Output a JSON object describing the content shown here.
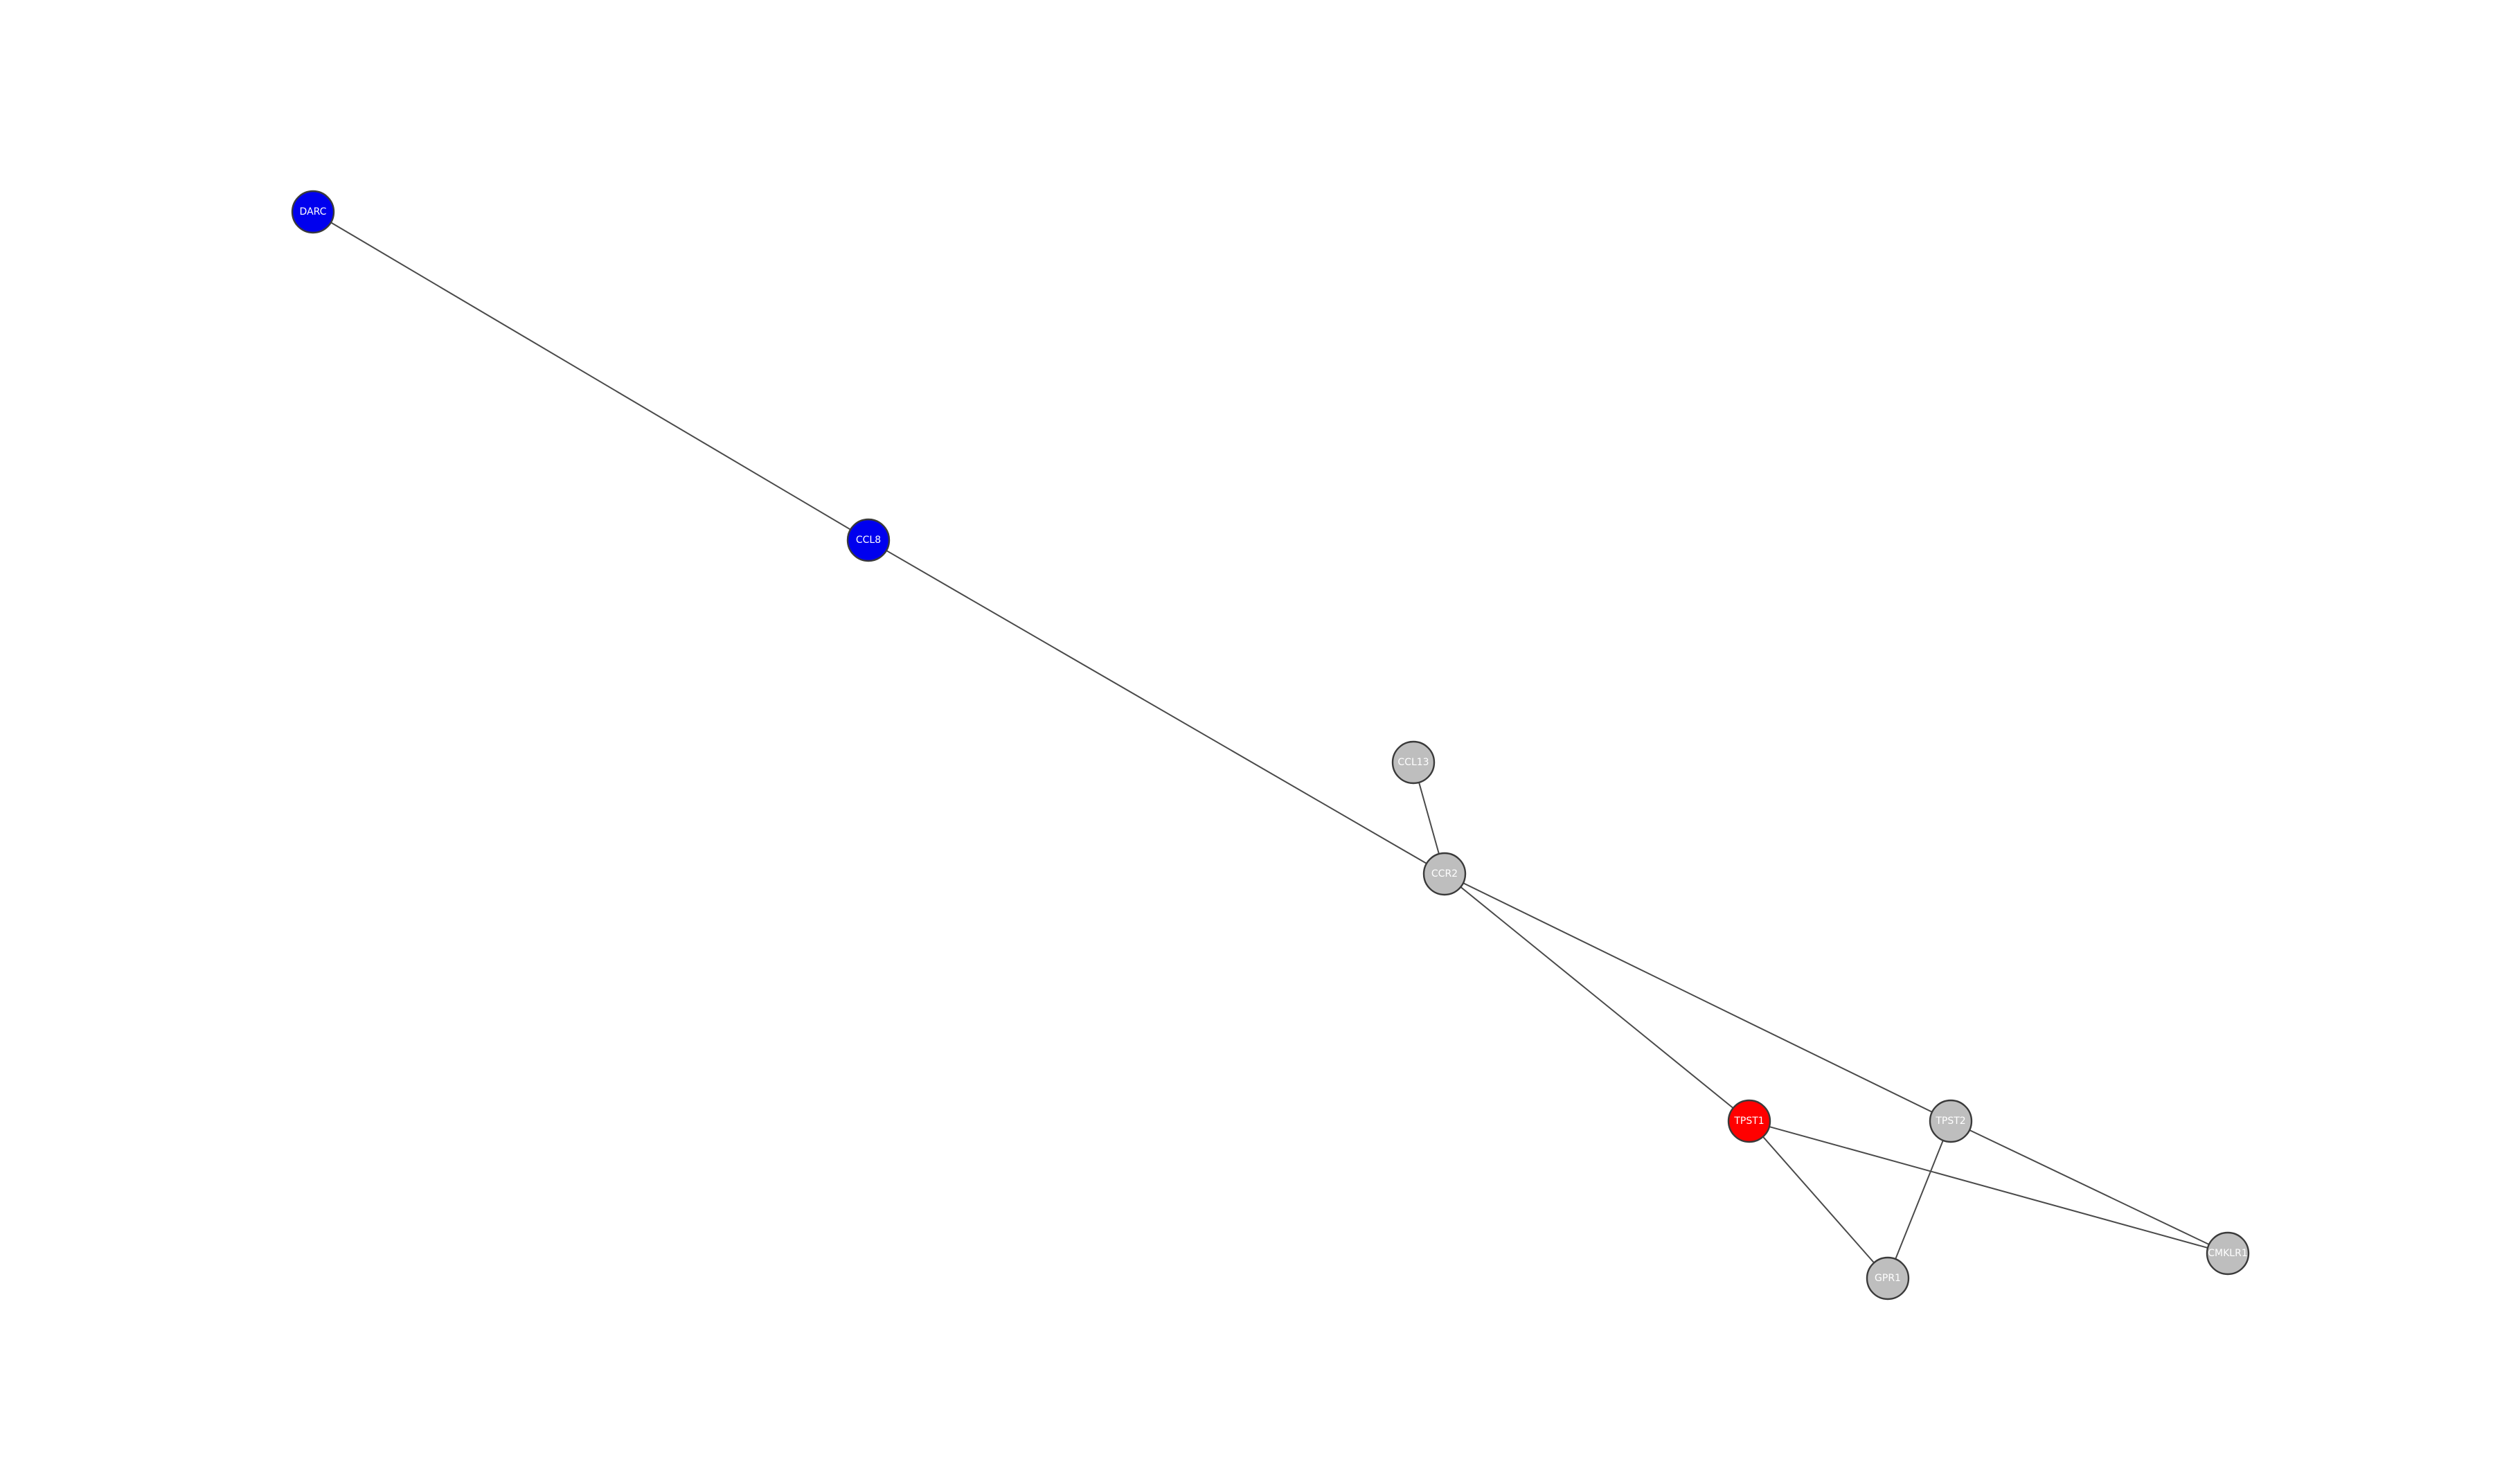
{
  "diagram": {
    "type": "network-graph",
    "nodes": [
      {
        "id": "DARC",
        "label": "DARC",
        "fill": "#0000ee",
        "text_color": "#ffffff",
        "interactable": true
      },
      {
        "id": "CCL8",
        "label": "CCL8",
        "fill": "#0000ee",
        "text_color": "#ffffff",
        "interactable": true
      },
      {
        "id": "CCL13",
        "label": "CCL13",
        "fill": "#bebebe",
        "text_color": "#ffffff",
        "interactable": true
      },
      {
        "id": "CCR2",
        "label": "CCR2",
        "fill": "#bebebe",
        "text_color": "#ffffff",
        "interactable": true
      },
      {
        "id": "TPST1",
        "label": "TPST1",
        "fill": "#ff0000",
        "text_color": "#ffffff",
        "interactable": true
      },
      {
        "id": "TPST2",
        "label": "TPST2",
        "fill": "#bebebe",
        "text_color": "#ffffff",
        "interactable": true
      },
      {
        "id": "CMKLR1",
        "label": "CMKLR1",
        "fill": "#bebebe",
        "text_color": "#ffffff",
        "interactable": true
      },
      {
        "id": "GPR1",
        "label": "GPR1",
        "fill": "#bebebe",
        "text_color": "#ffffff",
        "interactable": true
      }
    ],
    "edges": [
      [
        "DARC",
        "CCL8"
      ],
      [
        "CCL8",
        "CCR2"
      ],
      [
        "CCL13",
        "CCR2"
      ],
      [
        "CCR2",
        "TPST1"
      ],
      [
        "CCR2",
        "TPST2"
      ],
      [
        "TPST1",
        "CMKLR1"
      ],
      [
        "TPST1",
        "GPR1"
      ],
      [
        "TPST2",
        "GPR1"
      ],
      [
        "TPST2",
        "CMKLR1"
      ]
    ]
  }
}
